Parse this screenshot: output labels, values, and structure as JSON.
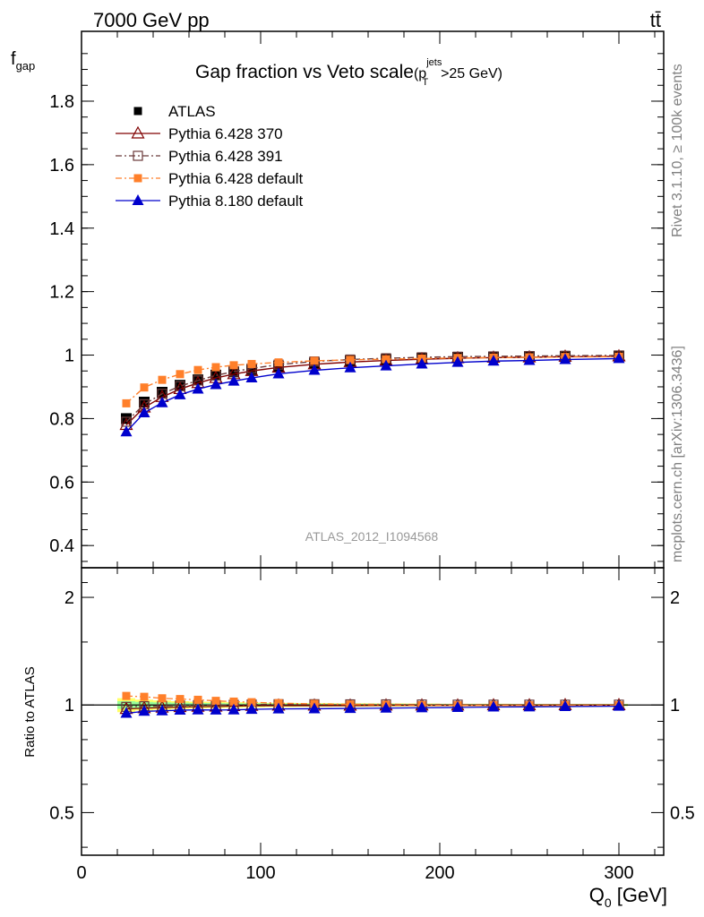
{
  "header": {
    "energy_label": "7000 GeV pp",
    "process_label": "tt̄"
  },
  "side_labels": {
    "rivet": "Rivet 3.1.10, ≥ 100k events",
    "mcplots": "mcplots.cern.ch [arXiv:1306.3436]"
  },
  "analysis_id": "ATLAS_2012_I1094568",
  "colors": {
    "atlas": "#000000",
    "p370": "#800000",
    "p391": "#6b3a3a",
    "pdef": "#ff7f2a",
    "p8": "#0000cc",
    "band_yellow": "#ffff66",
    "band_green": "#99ff99"
  },
  "chart_data": [
    {
      "type": "scatter",
      "title_main": "Gap fraction vs Veto scale",
      "title_cut": {
        "open": "(p",
        "sub": "T",
        "sup": "jets",
        "rest": ">25 GeV)"
      },
      "ylabel_main": "f",
      "ylabel_sub": "gap",
      "xlim": [
        0,
        325
      ],
      "ylim": [
        0.33,
        2.02
      ],
      "y_ticks": [
        0.4,
        0.6,
        0.8,
        1,
        1.2,
        1.4,
        1.6,
        1.8
      ],
      "y_tick_labels": [
        "0.4",
        "0.6",
        "0.8",
        "1",
        "1.2",
        "1.4",
        "1.6",
        "1.8"
      ],
      "legend_position": "top-left",
      "x": [
        25,
        35,
        45,
        55,
        65,
        75,
        85,
        95,
        110,
        130,
        150,
        170,
        190,
        210,
        230,
        250,
        270,
        300
      ],
      "series": [
        {
          "name": "ATLAS",
          "key": "atlas",
          "marker": "filled-square",
          "line": "none",
          "values": [
            0.8,
            0.852,
            0.883,
            0.905,
            0.922,
            0.937,
            0.947,
            0.955,
            0.965,
            0.975,
            0.982,
            0.986,
            0.99,
            0.993,
            0.994,
            0.995,
            0.996,
            0.997
          ]
        },
        {
          "name": "Pythia 6.428 370",
          "key": "p370",
          "marker": "open-triangle",
          "line": "solid",
          "values": [
            0.78,
            0.835,
            0.868,
            0.893,
            0.912,
            0.928,
            0.94,
            0.95,
            0.961,
            0.971,
            0.978,
            0.983,
            0.987,
            0.99,
            0.992,
            0.993,
            0.995,
            0.996
          ]
        },
        {
          "name": "Pythia 6.428 391",
          "key": "p391",
          "marker": "open-square",
          "line": "dashdot",
          "values": [
            0.79,
            0.845,
            0.878,
            0.902,
            0.92,
            0.936,
            0.948,
            0.958,
            0.97,
            0.98,
            0.986,
            0.99,
            0.993,
            0.995,
            0.996,
            0.997,
            0.998,
            0.999
          ]
        },
        {
          "name": "Pythia 6.428 default",
          "key": "pdef",
          "marker": "filled-square-small",
          "line": "dashdot",
          "values": [
            0.848,
            0.898,
            0.922,
            0.94,
            0.953,
            0.962,
            0.968,
            0.972,
            0.977,
            0.982,
            0.985,
            0.987,
            0.989,
            0.991,
            0.992,
            0.993,
            0.994,
            0.995
          ]
        },
        {
          "name": "Pythia 8.180 default",
          "key": "p8",
          "marker": "filled-triangle",
          "line": "solid",
          "values": [
            0.758,
            0.818,
            0.85,
            0.875,
            0.893,
            0.907,
            0.918,
            0.928,
            0.941,
            0.952,
            0.96,
            0.966,
            0.972,
            0.977,
            0.981,
            0.983,
            0.986,
            0.989
          ]
        }
      ]
    },
    {
      "type": "scatter",
      "ylabel": "Ratio to ATLAS",
      "xlabel_main": "Q",
      "xlabel_sub": "0",
      "xlabel_unit": " [GeV]",
      "xlim": [
        0,
        325
      ],
      "ylim": [
        0.38,
        2.42
      ],
      "y_scale": "log",
      "y_ticks": [
        0.5,
        1,
        2
      ],
      "y_tick_labels": [
        "0.5",
        "1",
        "2"
      ],
      "x_ticks": [
        0,
        100,
        200,
        300
      ],
      "x_tick_labels": [
        "0",
        "100",
        "200",
        "300"
      ],
      "x": [
        25,
        35,
        45,
        55,
        65,
        75,
        85,
        95,
        110,
        130,
        150,
        170,
        190,
        210,
        230,
        250,
        270,
        300
      ],
      "reference_band": {
        "yellow_halfwidth": [
          0.045,
          0.035,
          0.03,
          0.025,
          0.022,
          0.02,
          0.018,
          0.016,
          0.014,
          0.012,
          0.011,
          0.01,
          0.009,
          0.008,
          0.008,
          0.007,
          0.007,
          0.007
        ],
        "green_halfwidth": [
          0.025,
          0.02,
          0.017,
          0.015,
          0.013,
          0.012,
          0.011,
          0.01,
          0.009,
          0.008,
          0.007,
          0.007,
          0.006,
          0.006,
          0.005,
          0.005,
          0.005,
          0.005
        ]
      },
      "series": [
        {
          "name": "Pythia 6.428 370",
          "key": "p370",
          "marker": "open-triangle",
          "line": "solid",
          "values": [
            0.975,
            0.98,
            0.983,
            0.987,
            0.989,
            0.99,
            0.993,
            0.995,
            0.996,
            0.996,
            0.996,
            0.997,
            0.997,
            0.997,
            0.998,
            0.998,
            0.999,
            0.999
          ]
        },
        {
          "name": "Pythia 6.428 391",
          "key": "p391",
          "marker": "open-square",
          "line": "dashdot",
          "values": [
            0.988,
            0.992,
            0.994,
            0.997,
            0.998,
            0.999,
            1.001,
            1.003,
            1.005,
            1.005,
            1.004,
            1.004,
            1.003,
            1.002,
            1.002,
            1.002,
            1.002,
            1.002
          ]
        },
        {
          "name": "Pythia 6.428 default",
          "key": "pdef",
          "marker": "filled-square-small",
          "line": "dashdot",
          "values": [
            1.06,
            1.054,
            1.044,
            1.039,
            1.034,
            1.027,
            1.022,
            1.018,
            1.012,
            1.007,
            1.003,
            1.001,
            0.999,
            0.998,
            0.998,
            0.998,
            0.998,
            0.998
          ]
        },
        {
          "name": "Pythia 8.180 default",
          "key": "p8",
          "marker": "filled-triangle",
          "line": "solid",
          "values": [
            0.948,
            0.96,
            0.963,
            0.967,
            0.969,
            0.968,
            0.969,
            0.972,
            0.975,
            0.976,
            0.978,
            0.98,
            0.982,
            0.984,
            0.987,
            0.988,
            0.99,
            0.992
          ]
        }
      ]
    }
  ]
}
